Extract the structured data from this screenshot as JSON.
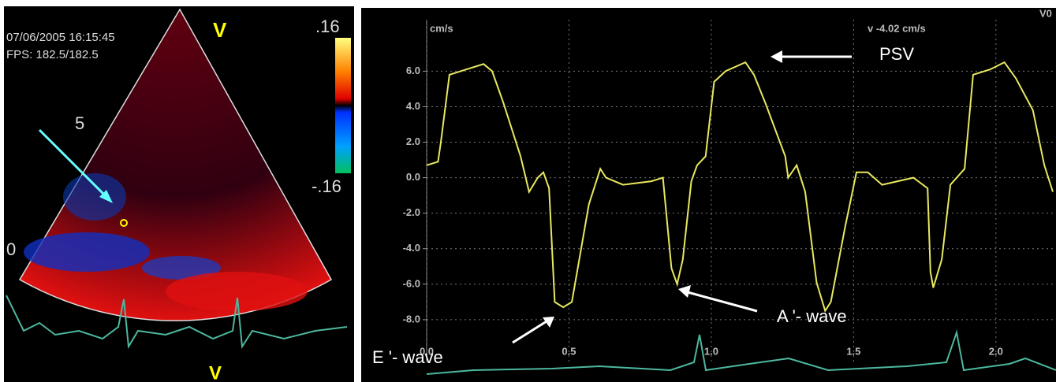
{
  "left_panel": {
    "timestamp": "07/06/2005 16:15:45",
    "fps": "FPS: 182.5/182.5",
    "top_marker": "V",
    "bottom_marker": "V",
    "scale_max": ".16",
    "scale_min": "-.16",
    "depth_5": "5",
    "depth_0": "0"
  },
  "chart_data": {
    "type": "line",
    "y_unit": "cm/s",
    "readout": "v -4.02 cm/s",
    "corner_label": "V0",
    "annotations": {
      "psv": "PSV",
      "a_wave": "A '- wave",
      "e_wave": "E '- wave"
    },
    "xlim": [
      0,
      2.2
    ],
    "ylim": [
      -10.4,
      8.9
    ],
    "xticks": [
      {
        "value": 0,
        "label": "0.0"
      },
      0.5,
      {
        "value": 1,
        "label": "1.0"
      },
      1.5,
      {
        "value": 2,
        "label": "2.0"
      }
    ],
    "yticks": [
      {
        "value": -8,
        "label": "-8.0"
      },
      {
        "value": -6,
        "label": "-6.0"
      },
      {
        "value": -4,
        "label": "-4.0"
      },
      {
        "value": -2,
        "label": "-2.0"
      },
      {
        "value": 0,
        "label": "0.0"
      },
      {
        "value": 2,
        "label": "2.0"
      },
      {
        "value": 4,
        "label": "4.0"
      },
      {
        "value": 6,
        "label": "6.0"
      }
    ],
    "grid": true,
    "series": [
      {
        "color": "#e8e860",
        "x": [
          0,
          0.04,
          0.05,
          0.08,
          0.14,
          0.2,
          0.23,
          0.27,
          0.33,
          0.36,
          0.39,
          0.41,
          0.43,
          0.45,
          0.48,
          0.51,
          0.57,
          0.61,
          0.63,
          0.69,
          0.79,
          0.83,
          0.86,
          0.88,
          0.9,
          0.93,
          0.95,
          0.98,
          1.01,
          1.05,
          1.12,
          1.15,
          1.19,
          1.26,
          1.27,
          1.3,
          1.33,
          1.37,
          1.4,
          1.42,
          1.47,
          1.51,
          1.55,
          1.6,
          1.71,
          1.76,
          1.77,
          1.78,
          1.81,
          1.84,
          1.89,
          1.92,
          1.98,
          2.03,
          2.07,
          2.13,
          2.17,
          2.2
        ],
        "values": [
          0.7,
          0.9,
          2.0,
          5.8,
          6.1,
          6.4,
          6.0,
          4.2,
          1.2,
          -0.8,
          0.0,
          0.3,
          -0.6,
          -7.0,
          -7.3,
          -7.0,
          -1.5,
          0.5,
          0.0,
          -0.4,
          -0.2,
          0.0,
          -5.1,
          -6.0,
          -4.6,
          -0.2,
          0.7,
          1.2,
          5.4,
          6.0,
          6.5,
          5.8,
          4.2,
          1.2,
          0.0,
          0.7,
          -0.8,
          -5.9,
          -7.5,
          -7.0,
          -2.8,
          0.3,
          0.3,
          -0.4,
          0.0,
          -0.6,
          -5.3,
          -6.2,
          -4.6,
          -0.4,
          0.5,
          5.8,
          6.1,
          6.5,
          5.6,
          3.8,
          0.7,
          -0.8
        ]
      }
    ]
  }
}
